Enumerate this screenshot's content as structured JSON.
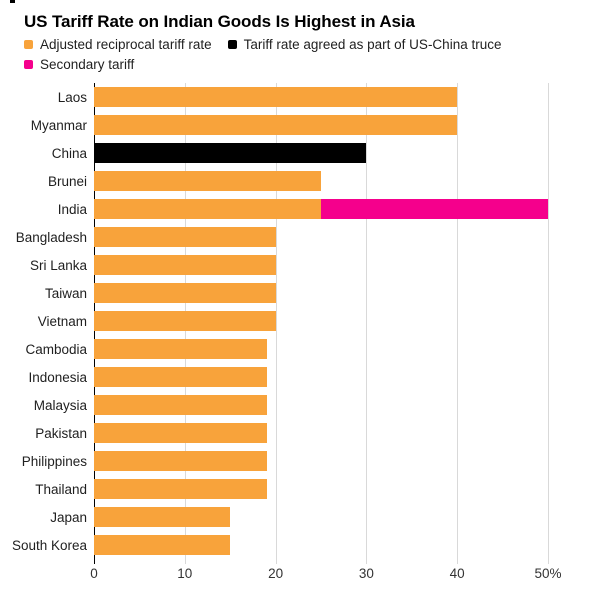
{
  "title": "US Tariff Rate on Indian Goods Is Highest in Asia",
  "colors": {
    "adjusted_reciprocal": "#F8A33B",
    "china_truce": "#000000",
    "secondary_tariff": "#F5008C",
    "gridline": "#D9D9D9",
    "axis_line": "#000000",
    "background": "#FFFFFF"
  },
  "chart_data": {
    "type": "bar",
    "orientation": "horizontal",
    "stacked": true,
    "title": "US Tariff Rate on Indian Goods Is Highest in Asia",
    "xlabel": "",
    "ylabel": "",
    "xlim": [
      0,
      50
    ],
    "grid": "vertical",
    "legend_position": "top",
    "categories": [
      "Laos",
      "Myanmar",
      "China",
      "Brunei",
      "India",
      "Bangladesh",
      "Sri Lanka",
      "Taiwan",
      "Vietnam",
      "Cambodia",
      "Indonesia",
      "Malaysia",
      "Pakistan",
      "Philippines",
      "Thailand",
      "Japan",
      "South Korea"
    ],
    "series": [
      {
        "name": "Adjusted reciprocal tariff rate",
        "color": "#F8A33B",
        "values": [
          40,
          40,
          0,
          25,
          25,
          20,
          20,
          20,
          20,
          19,
          19,
          19,
          19,
          19,
          19,
          15,
          15
        ]
      },
      {
        "name": "Tariff rate agreed as part of US-China truce",
        "color": "#000000",
        "values": [
          0,
          0,
          30,
          0,
          0,
          0,
          0,
          0,
          0,
          0,
          0,
          0,
          0,
          0,
          0,
          0,
          0
        ]
      },
      {
        "name": "Secondary tariff",
        "color": "#F5008C",
        "values": [
          0,
          0,
          0,
          0,
          25,
          0,
          0,
          0,
          0,
          0,
          0,
          0,
          0,
          0,
          0,
          0,
          0
        ]
      }
    ],
    "xticks": [
      {
        "value": 0,
        "label": "0"
      },
      {
        "value": 10,
        "label": "10"
      },
      {
        "value": 20,
        "label": "20"
      },
      {
        "value": 30,
        "label": "30"
      },
      {
        "value": 40,
        "label": "40"
      },
      {
        "value": 50,
        "label": "50%"
      }
    ]
  }
}
